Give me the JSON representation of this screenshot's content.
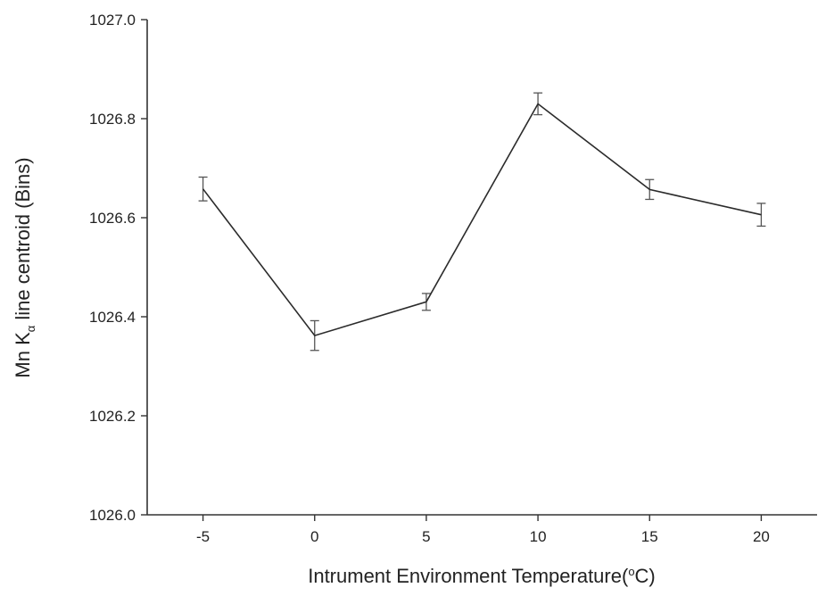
{
  "chart_data": {
    "type": "line",
    "xlabel": "Intrument Environment Temperature(",
    "xlabel_sup": "o",
    "xlabel_tail": "C)",
    "ylabel": "Mn K",
    "ylabel_sub": "α",
    "ylabel_tail": " line centroid (Bins)",
    "xlim": [
      -7.5,
      22.5
    ],
    "ylim": [
      1026.0,
      1027.0
    ],
    "xticks": [
      -5,
      0,
      5,
      10,
      15,
      20
    ],
    "xtick_labels": [
      "-5",
      "0",
      "5",
      "10",
      "15",
      "20"
    ],
    "yticks": [
      1026.0,
      1026.2,
      1026.4,
      1026.6,
      1026.8,
      1027.0
    ],
    "ytick_labels": [
      "1026.0",
      "1026.2",
      "1026.4",
      "1026.6",
      "1026.8",
      "1027.0"
    ],
    "grid": false,
    "series": [
      {
        "x": [
          -5,
          0,
          5,
          10,
          15,
          20
        ],
        "y": [
          1026.658,
          1026.362,
          1026.43,
          1026.83,
          1026.657,
          1026.606
        ],
        "yerr": [
          0.024,
          0.03,
          0.017,
          0.022,
          0.02,
          0.023
        ],
        "color": "#2b2b2b"
      }
    ]
  }
}
